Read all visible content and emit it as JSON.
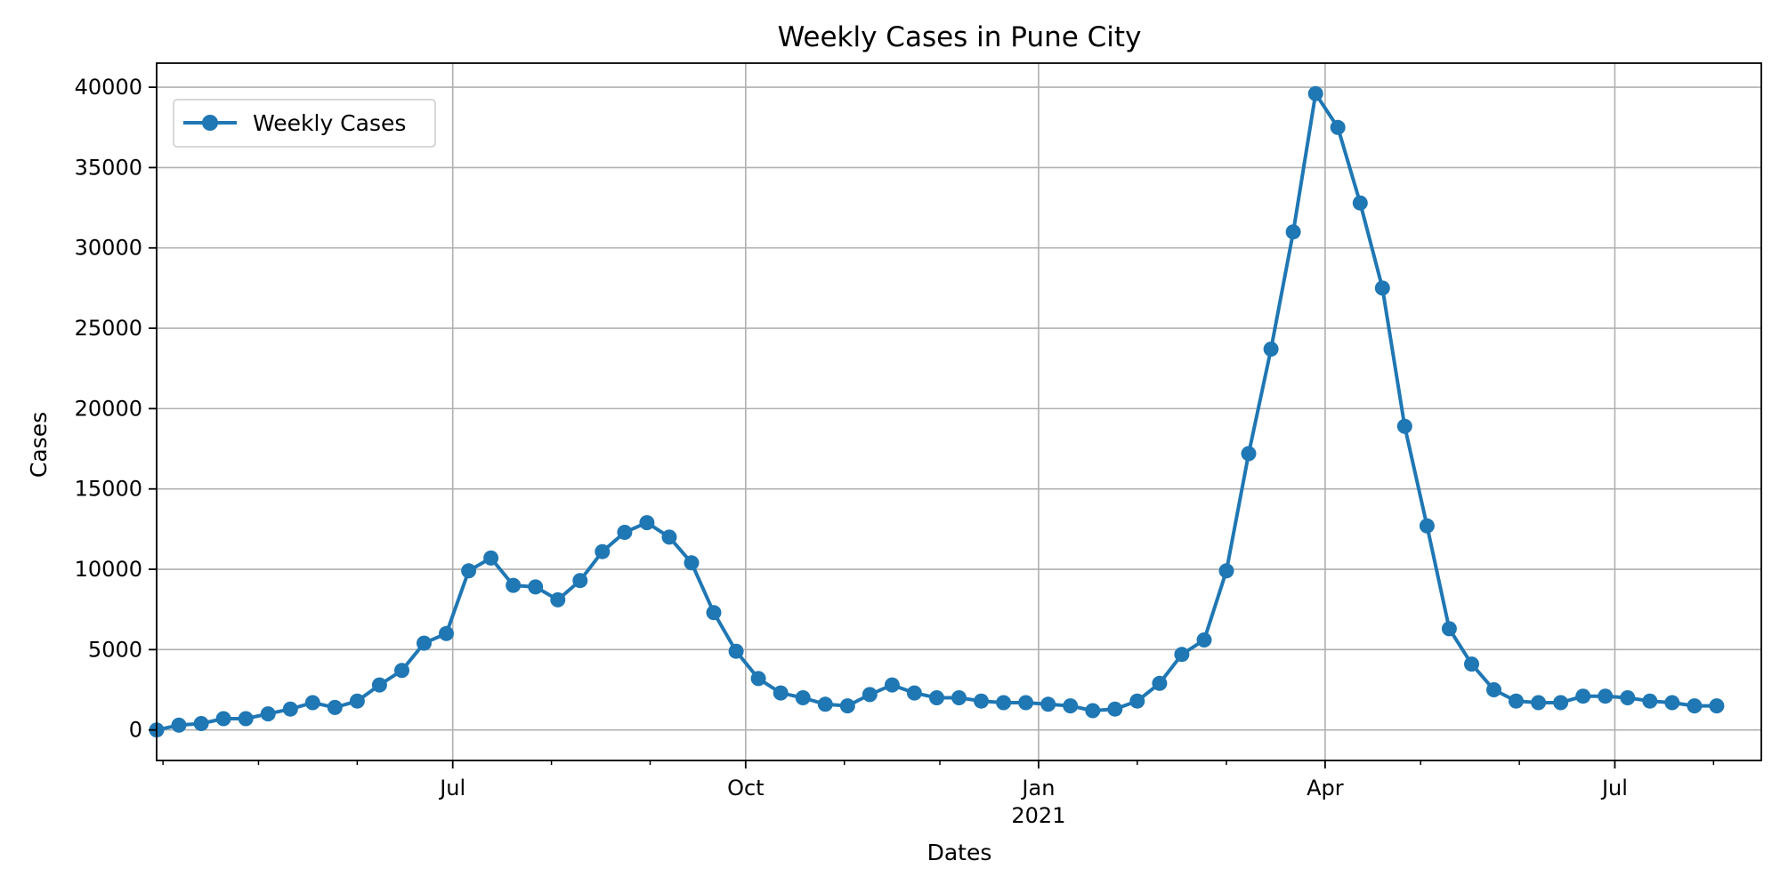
{
  "chart_data": {
    "type": "line",
    "title": "Weekly Cases in Pune City",
    "xlabel": "Dates",
    "ylabel": "Cases",
    "x_axis": {
      "type": "date",
      "range": [
        "2020-03-30",
        "2021-08-16"
      ],
      "major_ticks": [
        {
          "date": "2020-07-01",
          "label": "Jul"
        },
        {
          "date": "2020-10-01",
          "label": "Oct"
        },
        {
          "date": "2021-01-01",
          "label": "Jan"
        },
        {
          "date": "2021-04-01",
          "label": "Apr"
        },
        {
          "date": "2021-07-01",
          "label": "Jul"
        }
      ],
      "minor_ticks": [
        "2020-04-01",
        "2020-05-01",
        "2020-06-01",
        "2020-08-01",
        "2020-09-01",
        "2020-11-01",
        "2020-12-01",
        "2021-02-01",
        "2021-03-01",
        "2021-05-01",
        "2021-06-01",
        "2021-08-01"
      ],
      "secondary_label": {
        "date": "2021-01-01",
        "text": "2021"
      }
    },
    "y_axis": {
      "range": [
        -1900,
        41500
      ],
      "ticks": [
        0,
        5000,
        10000,
        15000,
        20000,
        25000,
        30000,
        35000,
        40000
      ],
      "tick_labels": [
        "0",
        "5000",
        "10000",
        "15000",
        "20000",
        "25000",
        "30000",
        "35000",
        "40000"
      ]
    },
    "grid": true,
    "legend_position": "top-left",
    "series": [
      {
        "name": "Weekly Cases",
        "color": "#1f77b4",
        "marker": "circle",
        "start_date": "2020-03-30",
        "x_step_days": 7,
        "values": [
          0,
          300,
          400,
          700,
          700,
          1000,
          1300,
          1700,
          1400,
          1800,
          2800,
          3700,
          5400,
          6000,
          9900,
          10700,
          9000,
          8900,
          8100,
          9300,
          11100,
          12300,
          12900,
          12000,
          10400,
          7300,
          4900,
          3200,
          2300,
          2000,
          1600,
          1500,
          2200,
          2800,
          2300,
          2000,
          2000,
          1800,
          1700,
          1700,
          1600,
          1500,
          1200,
          1300,
          1800,
          2900,
          4700,
          5600,
          9900,
          17200,
          23700,
          31000,
          39600,
          37500,
          32800,
          27500,
          18900,
          12700,
          6300,
          4100,
          2500,
          1800,
          1700,
          1700,
          2100,
          2100,
          2000,
          1800,
          1700,
          1500,
          1500
        ]
      }
    ]
  }
}
